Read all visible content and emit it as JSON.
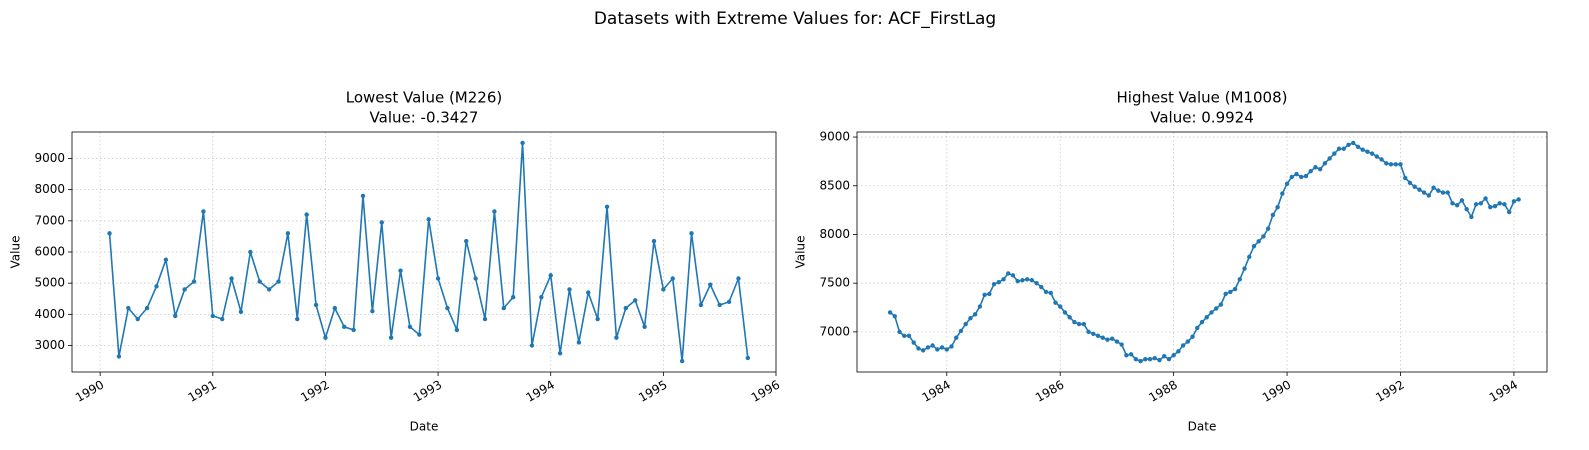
{
  "title": "Datasets with Extreme Values for: ACF_FirstLag",
  "chart_data": [
    {
      "type": "line",
      "title": "Lowest Value (M226)",
      "subtitle": "Value: -0.3427",
      "x_label": "Date",
      "y_label": "Value",
      "color": "#1f77b4",
      "grid": true,
      "x": [
        "1990-02",
        "1990-03",
        "1990-04",
        "1990-05",
        "1990-06",
        "1990-07",
        "1990-08",
        "1990-09",
        "1990-10",
        "1990-11",
        "1990-12",
        "1991-01",
        "1991-02",
        "1991-03",
        "1991-04",
        "1991-05",
        "1991-06",
        "1991-07",
        "1991-08",
        "1991-09",
        "1991-10",
        "1991-11",
        "1991-12",
        "1992-01",
        "1992-02",
        "1992-03",
        "1992-04",
        "1992-05",
        "1992-06",
        "1992-07",
        "1992-08",
        "1992-09",
        "1992-10",
        "1992-11",
        "1992-12",
        "1993-01",
        "1993-02",
        "1993-03",
        "1993-04",
        "1993-05",
        "1993-06",
        "1993-07",
        "1993-08",
        "1993-09",
        "1993-10",
        "1993-11",
        "1993-12",
        "1994-01",
        "1994-02",
        "1994-03",
        "1994-04",
        "1994-05",
        "1994-06",
        "1994-07",
        "1994-08",
        "1994-09",
        "1994-10",
        "1994-11",
        "1994-12",
        "1995-01",
        "1995-02",
        "1995-03",
        "1995-04",
        "1995-05",
        "1995-06",
        "1995-07",
        "1995-08",
        "1995-09",
        "1995-10"
      ],
      "values": [
        6600,
        2650,
        4200,
        3850,
        4200,
        4900,
        5750,
        3950,
        4800,
        5050,
        7300,
        3950,
        3850,
        5150,
        4080,
        6000,
        5050,
        4800,
        5050,
        6600,
        3850,
        7200,
        4300,
        3250,
        4200,
        3600,
        3500,
        7800,
        4100,
        6950,
        3250,
        5400,
        3600,
        3350,
        7050,
        5150,
        4200,
        3500,
        6350,
        5150,
        3850,
        7300,
        4200,
        4550,
        9500,
        3000,
        4550,
        5250,
        2750,
        4800,
        3100,
        4700,
        3850,
        7450,
        3250,
        4200,
        4450,
        3600,
        6350,
        4800,
        5150,
        2500,
        6600,
        4300,
        4950,
        4300,
        4400,
        5150,
        2600
      ],
      "xlim": [
        "1989-10",
        "1996-01"
      ],
      "xticks": [
        "1990",
        "1991",
        "1992",
        "1993",
        "1994",
        "1995",
        "1996"
      ],
      "ylim": [
        2150,
        9850
      ],
      "yticks": [
        3000,
        4000,
        5000,
        6000,
        7000,
        8000,
        9000
      ]
    },
    {
      "type": "line",
      "title": "Highest Value (M1008)",
      "subtitle": "Value: 0.9924",
      "x_label": "Date",
      "y_label": "Value",
      "color": "#1f77b4",
      "grid": true,
      "x": [
        "1983-01",
        "1983-02",
        "1983-03",
        "1983-04",
        "1983-05",
        "1983-06",
        "1983-07",
        "1983-08",
        "1983-09",
        "1983-10",
        "1983-11",
        "1983-12",
        "1984-01",
        "1984-02",
        "1984-03",
        "1984-04",
        "1984-05",
        "1984-06",
        "1984-07",
        "1984-08",
        "1984-09",
        "1984-10",
        "1984-11",
        "1984-12",
        "1985-01",
        "1985-02",
        "1985-03",
        "1985-04",
        "1985-05",
        "1985-06",
        "1985-07",
        "1985-08",
        "1985-09",
        "1985-10",
        "1985-11",
        "1985-12",
        "1986-01",
        "1986-02",
        "1986-03",
        "1986-04",
        "1986-05",
        "1986-06",
        "1986-07",
        "1986-08",
        "1986-09",
        "1986-10",
        "1986-11",
        "1986-12",
        "1987-01",
        "1987-02",
        "1987-03",
        "1987-04",
        "1987-05",
        "1987-06",
        "1987-07",
        "1987-08",
        "1987-09",
        "1987-10",
        "1987-11",
        "1987-12",
        "1988-01",
        "1988-02",
        "1988-03",
        "1988-04",
        "1988-05",
        "1988-06",
        "1988-07",
        "1988-08",
        "1988-09",
        "1988-10",
        "1988-11",
        "1988-12",
        "1989-01",
        "1989-02",
        "1989-03",
        "1989-04",
        "1989-05",
        "1989-06",
        "1989-07",
        "1989-08",
        "1989-09",
        "1989-10",
        "1989-11",
        "1989-12",
        "1990-01",
        "1990-02",
        "1990-03",
        "1990-04",
        "1990-05",
        "1990-06",
        "1990-07",
        "1990-08",
        "1990-09",
        "1990-10",
        "1990-11",
        "1990-12",
        "1991-01",
        "1991-02",
        "1991-03",
        "1991-04",
        "1991-05",
        "1991-06",
        "1991-07",
        "1991-08",
        "1991-09",
        "1991-10",
        "1991-11",
        "1991-12",
        "1992-01",
        "1992-02",
        "1992-03",
        "1992-04",
        "1992-05",
        "1992-06",
        "1992-07",
        "1992-08",
        "1992-09",
        "1992-10",
        "1992-11",
        "1992-12",
        "1993-01",
        "1993-02",
        "1993-03",
        "1993-04",
        "1993-05",
        "1993-06",
        "1993-07",
        "1993-08",
        "1993-09",
        "1993-10",
        "1993-11",
        "1993-12",
        "1994-01",
        "1994-02"
      ],
      "values": [
        7200,
        7160,
        7000,
        6960,
        6960,
        6890,
        6830,
        6810,
        6840,
        6860,
        6820,
        6840,
        6820,
        6850,
        6940,
        7010,
        7080,
        7140,
        7180,
        7260,
        7380,
        7390,
        7490,
        7510,
        7540,
        7600,
        7580,
        7520,
        7530,
        7540,
        7530,
        7500,
        7460,
        7410,
        7400,
        7300,
        7260,
        7200,
        7150,
        7100,
        7080,
        7080,
        7000,
        6980,
        6960,
        6940,
        6920,
        6930,
        6900,
        6870,
        6760,
        6770,
        6720,
        6700,
        6720,
        6720,
        6730,
        6710,
        6750,
        6720,
        6760,
        6800,
        6860,
        6900,
        6950,
        7040,
        7100,
        7150,
        7200,
        7240,
        7280,
        7390,
        7410,
        7440,
        7540,
        7650,
        7770,
        7880,
        7930,
        7980,
        8060,
        8200,
        8280,
        8420,
        8520,
        8590,
        8620,
        8590,
        8600,
        8650,
        8690,
        8670,
        8730,
        8780,
        8830,
        8880,
        8880,
        8920,
        8940,
        8900,
        8870,
        8850,
        8830,
        8800,
        8770,
        8730,
        8720,
        8720,
        8720,
        8580,
        8530,
        8490,
        8460,
        8430,
        8400,
        8480,
        8450,
        8430,
        8430,
        8320,
        8300,
        8350,
        8260,
        8180,
        8310,
        8320,
        8370,
        8280,
        8290,
        8320,
        8310,
        8230,
        8340,
        8360
      ],
      "xlim": [
        "1982-06",
        "1994-08"
      ],
      "xticks": [
        "1984",
        "1986",
        "1988",
        "1990",
        "1992",
        "1994"
      ],
      "ylim": [
        6588,
        9052
      ],
      "yticks": [
        7000,
        7500,
        8000,
        8500,
        9000
      ]
    }
  ]
}
